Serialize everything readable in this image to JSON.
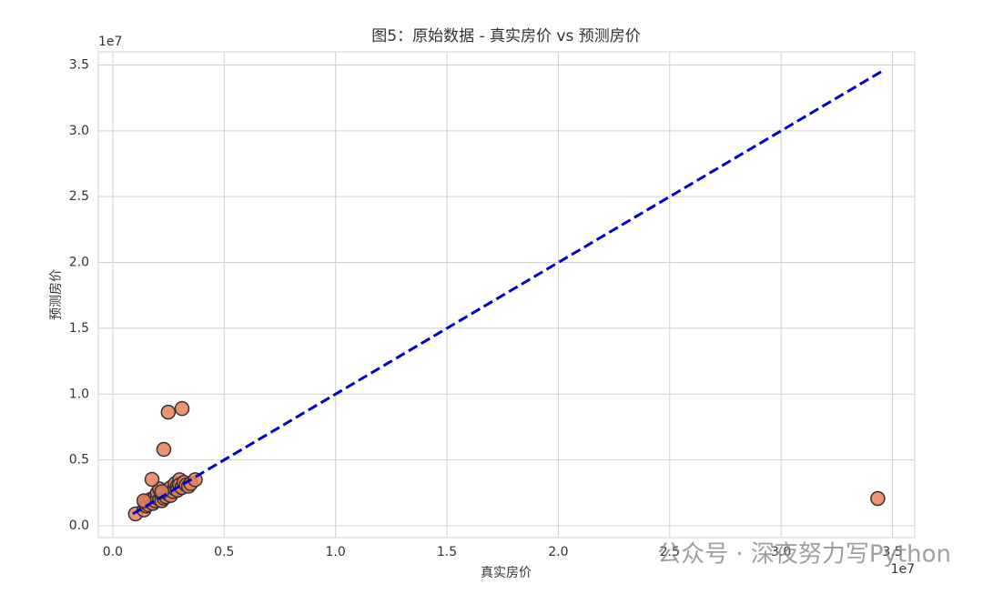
{
  "chart_data": {
    "type": "scatter",
    "title": "图5：原始数据 - 真实房价 vs 预测房价",
    "x_label": "真实房价",
    "y_label": "预测房价",
    "x_offset_label": "1e7",
    "y_offset_label": "1e7",
    "watermark": "公众号 · 深夜努力写Python",
    "xlim": [
      -0.065,
      3.6
    ],
    "ylim": [
      -0.09,
      3.6
    ],
    "xticks": [
      {
        "value": 0,
        "label": "0.0"
      },
      0.5,
      {
        "value": 1,
        "label": "1.0"
      },
      1.5,
      {
        "value": 2,
        "label": "2.0"
      },
      2.5,
      {
        "value": 3,
        "label": "3.0"
      },
      3.5
    ],
    "yticks": [
      {
        "value": 0,
        "label": "0.0"
      },
      0.5,
      {
        "value": 1,
        "label": "1.0"
      },
      1.5,
      {
        "value": 2,
        "label": "2.0"
      },
      2.5,
      {
        "value": 3,
        "label": "3.0"
      },
      3.5
    ],
    "grid": true,
    "color": "#e8805a",
    "edge_color": "#333333",
    "x": [
      0.102,
      0.14,
      0.15,
      0.15,
      0.16,
      0.17,
      0.18,
      0.19,
      0.19,
      0.2,
      0.2,
      0.21,
      0.21,
      0.22,
      0.22,
      0.23,
      0.23,
      0.24,
      0.25,
      0.25,
      0.26,
      0.26,
      0.27,
      0.28,
      0.28,
      0.29,
      0.29,
      0.3,
      0.3,
      0.31,
      0.32,
      0.33,
      0.34,
      0.35,
      0.37,
      0.176,
      0.229,
      0.249,
      0.311,
      3.434,
      0.14,
      0.22
    ],
    "values": [
      0.09,
      0.12,
      0.15,
      0.18,
      0.16,
      0.2,
      0.17,
      0.19,
      0.22,
      0.21,
      0.25,
      0.2,
      0.28,
      0.23,
      0.19,
      0.25,
      0.21,
      0.22,
      0.27,
      0.24,
      0.23,
      0.29,
      0.26,
      0.28,
      0.32,
      0.3,
      0.27,
      0.35,
      0.31,
      0.29,
      0.33,
      0.31,
      0.3,
      0.32,
      0.35,
      0.352,
      0.58,
      0.863,
      0.89,
      0.207,
      0.19,
      0.26
    ],
    "reference_line": {
      "x": [
        0.09,
        3.45
      ],
      "y": [
        0.09,
        3.45
      ],
      "color": "#0000cc",
      "style": "dashed"
    }
  }
}
